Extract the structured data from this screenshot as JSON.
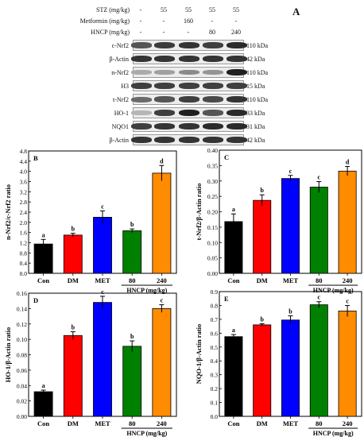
{
  "panel_a": {
    "letter": "A",
    "treatment_rows": [
      {
        "label": "STZ (mg/kg)",
        "values": [
          "-",
          "55",
          "55",
          "55",
          "55"
        ]
      },
      {
        "label": "Metformin (mg/kg)",
        "values": [
          "-",
          "-",
          "160",
          "-",
          "-"
        ]
      },
      {
        "label": "HNCP (mg/kg)",
        "values": [
          "-",
          "-",
          "-",
          "80",
          "240"
        ]
      }
    ],
    "blots": [
      {
        "name": "c-Nrf2",
        "kda": "110 kDa",
        "intensity": [
          0.7,
          0.82,
          0.85,
          0.8,
          0.9
        ]
      },
      {
        "name": "β-Actin",
        "kda": "42 kDa",
        "intensity": [
          0.85,
          0.85,
          0.85,
          0.85,
          0.85
        ]
      },
      {
        "name": "n-Nrf2",
        "kda": "110 kDa",
        "intensity": [
          0.3,
          0.35,
          0.45,
          0.4,
          0.95
        ]
      },
      {
        "name": "H3",
        "kda": "15 kDa",
        "intensity": [
          0.8,
          0.8,
          0.8,
          0.8,
          0.8
        ]
      },
      {
        "name": "t-Nrf2",
        "kda": "110 kDa",
        "intensity": [
          0.6,
          0.7,
          0.8,
          0.75,
          0.85
        ]
      },
      {
        "name": "HO-1",
        "kda": "33 kDa",
        "intensity": [
          0.25,
          0.8,
          0.95,
          0.7,
          0.9
        ]
      },
      {
        "name": "NQO1",
        "kda": "31 kDa",
        "intensity": [
          0.8,
          0.85,
          0.85,
          0.9,
          0.9
        ]
      },
      {
        "name": "β-Actin",
        "kda": "42 kDa",
        "intensity": [
          0.85,
          0.85,
          0.85,
          0.85,
          0.85
        ]
      }
    ]
  },
  "colors": [
    "#000000",
    "#ff0000",
    "#0000ff",
    "#008000",
    "#ff8c00"
  ],
  "chart_data": [
    {
      "type": "bar",
      "letter": "B",
      "categories": [
        "Con",
        "DM",
        "MET",
        "80",
        "240"
      ],
      "group_label": "HNCP (mg/kg)",
      "values": [
        1.15,
        1.5,
        2.2,
        1.67,
        3.93
      ],
      "errors": [
        0.18,
        0.07,
        0.25,
        0.07,
        0.3
      ],
      "sig": [
        "a",
        "b",
        "c",
        "b",
        "d"
      ],
      "ylabel": "n-Nrf2/c-Nrf2 ratio",
      "ylim": [
        0,
        4.8
      ],
      "yticks": [
        "0.0",
        "0.4",
        "0.8",
        "1.2",
        "1.6",
        "2.0",
        "2.4",
        "2.8",
        "3.2",
        "3.6",
        "4.0",
        "4.4",
        "4.8"
      ],
      "ytick_vals": [
        0,
        0.4,
        0.8,
        1.2,
        1.6,
        2.0,
        2.4,
        2.8,
        3.2,
        3.6,
        4.0,
        4.4,
        4.8
      ]
    },
    {
      "type": "bar",
      "letter": "C",
      "categories": [
        "Con",
        "DM",
        "MET",
        "80",
        "240"
      ],
      "group_label": "HNCP (mg/kg)",
      "values": [
        0.168,
        0.237,
        0.308,
        0.28,
        0.332
      ],
      "errors": [
        0.025,
        0.018,
        0.01,
        0.018,
        0.015
      ],
      "sig": [
        "a",
        "b",
        "c",
        "c",
        "d"
      ],
      "ylabel": "t-Nrf2/β-Actin ratio",
      "ylim": [
        0,
        0.4
      ],
      "yticks": [
        "0.00",
        "0.05",
        "0.10",
        "0.15",
        "0.20",
        "0.25",
        "0.30",
        "0.35",
        "0.40"
      ],
      "ytick_vals": [
        0,
        0.05,
        0.1,
        0.15,
        0.2,
        0.25,
        0.3,
        0.35,
        0.4
      ]
    },
    {
      "type": "bar",
      "letter": "D",
      "categories": [
        "Con",
        "DM",
        "MET",
        "80",
        "240"
      ],
      "group_label": "HNCP (mg/kg)",
      "values": [
        0.032,
        0.105,
        0.148,
        0.091,
        0.14
      ],
      "errors": [
        0.002,
        0.005,
        0.008,
        0.007,
        0.005
      ],
      "sig": [
        "a",
        "b",
        "c",
        "b",
        "c"
      ],
      "ylabel": "HO-1/β-Actin ratio",
      "ylim": [
        0,
        0.16
      ],
      "yticks": [
        "0.00",
        "0.02",
        "0.04",
        "0.06",
        "0.08",
        "0.10",
        "0.12",
        "0.14",
        "0.16"
      ],
      "ytick_vals": [
        0,
        0.02,
        0.04,
        0.06,
        0.08,
        0.1,
        0.12,
        0.14,
        0.16
      ]
    },
    {
      "type": "bar",
      "letter": "E",
      "categories": [
        "Con",
        "DM",
        "MET",
        "80",
        "240"
      ],
      "group_label": "HNCP (mg/kg)",
      "values": [
        0.575,
        0.66,
        0.695,
        0.805,
        0.76
      ],
      "errors": [
        0.015,
        0.008,
        0.03,
        0.022,
        0.04
      ],
      "sig": [
        "a",
        "b",
        "b",
        "c",
        "c"
      ],
      "ylabel": "NQO-1/β-Actin ratio",
      "ylim": [
        0,
        0.9
      ],
      "yticks": [
        "0.0",
        "0.1",
        "0.2",
        "0.3",
        "0.4",
        "0.5",
        "0.6",
        "0.7",
        "0.8",
        "0.9"
      ],
      "ytick_vals": [
        0,
        0.1,
        0.2,
        0.3,
        0.4,
        0.5,
        0.6,
        0.7,
        0.8,
        0.9
      ]
    }
  ]
}
